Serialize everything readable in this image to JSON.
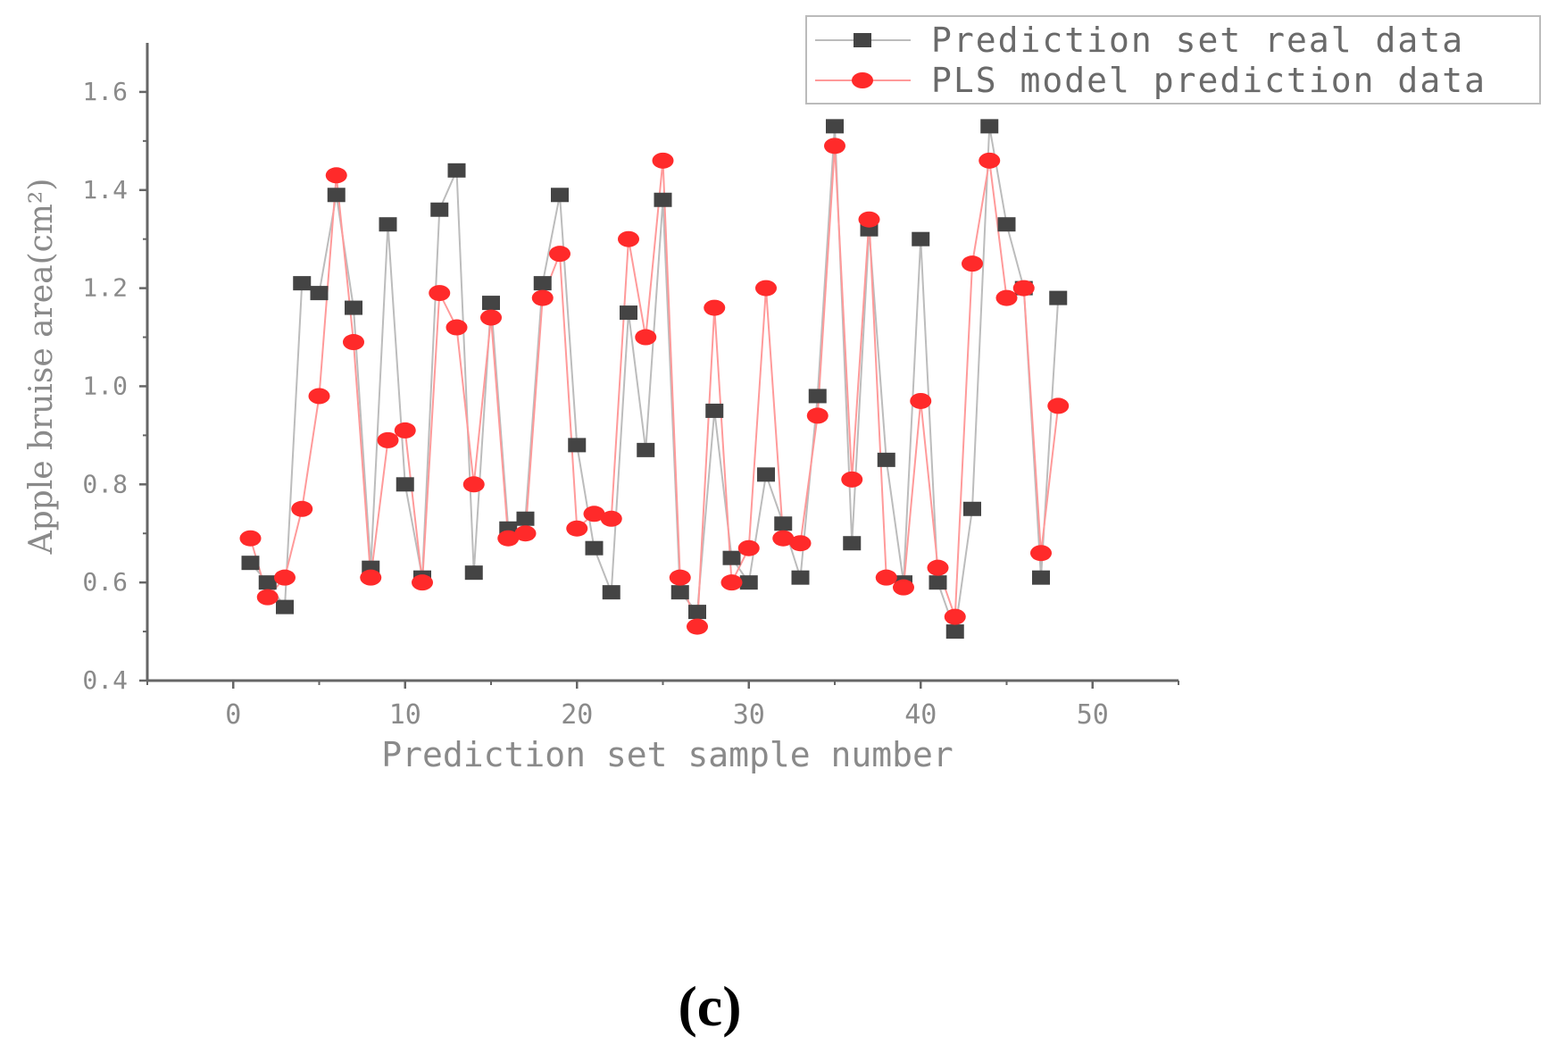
{
  "colors": {
    "real_marker": "#444444",
    "real_line": "#bcbcbc",
    "pred_marker": "#ff2a2a",
    "pred_line": "#ff9a9a",
    "axis": "#666666",
    "text": "#8a8a8a"
  },
  "panel_label": "(c)",
  "chart_data": {
    "type": "line",
    "title": "",
    "xlabel": "Prediction set sample number",
    "ylabel": "Apple bruise area(cm²)",
    "xlim": [
      -5,
      55
    ],
    "ylim": [
      0.4,
      1.7
    ],
    "xticks": [
      0,
      10,
      20,
      30,
      40,
      50
    ],
    "yticks": [
      0.4,
      0.6,
      0.8,
      1.0,
      1.2,
      1.4,
      1.6
    ],
    "xtick_labels": [
      "0",
      "10",
      "20",
      "30",
      "40",
      "50"
    ],
    "ytick_labels": [
      "0.4",
      "0.6",
      "0.8",
      "1.0",
      "1.2",
      "1.4",
      "1.6"
    ],
    "legend_position": "top-right",
    "x": [
      1,
      2,
      3,
      4,
      5,
      6,
      7,
      8,
      9,
      10,
      11,
      12,
      13,
      14,
      15,
      16,
      17,
      18,
      19,
      20,
      21,
      22,
      23,
      24,
      25,
      26,
      27,
      28,
      29,
      30,
      31,
      32,
      33,
      34,
      35,
      36,
      37,
      38,
      39,
      40,
      41,
      42,
      43,
      44,
      45,
      46,
      47,
      48
    ],
    "series": [
      {
        "name": "Prediction set real data",
        "marker": "square",
        "values": [
          0.64,
          0.6,
          0.55,
          1.21,
          1.19,
          1.39,
          1.16,
          0.63,
          1.33,
          0.8,
          0.61,
          1.36,
          1.44,
          0.62,
          1.17,
          0.71,
          0.73,
          1.21,
          1.39,
          0.88,
          0.67,
          0.58,
          1.15,
          0.87,
          1.38,
          0.58,
          0.54,
          0.95,
          0.65,
          0.6,
          0.82,
          0.72,
          0.61,
          0.98,
          1.53,
          0.68,
          1.32,
          0.85,
          0.6,
          1.3,
          0.6,
          0.5,
          0.75,
          1.53,
          1.33,
          1.2,
          0.61,
          1.18
        ]
      },
      {
        "name": "PLS model prediction data",
        "marker": "circle",
        "values": [
          0.69,
          0.57,
          0.61,
          0.75,
          0.98,
          1.43,
          1.09,
          0.61,
          0.89,
          0.91,
          0.6,
          1.19,
          1.12,
          0.8,
          1.14,
          0.69,
          0.7,
          1.18,
          1.27,
          0.71,
          0.74,
          0.73,
          1.3,
          1.1,
          1.46,
          0.61,
          0.51,
          1.16,
          0.6,
          0.67,
          1.2,
          0.69,
          0.68,
          0.94,
          1.49,
          0.81,
          1.34,
          0.61,
          0.59,
          0.97,
          0.63,
          0.53,
          1.25,
          1.46,
          1.18,
          1.2,
          0.66,
          0.96
        ]
      }
    ]
  }
}
